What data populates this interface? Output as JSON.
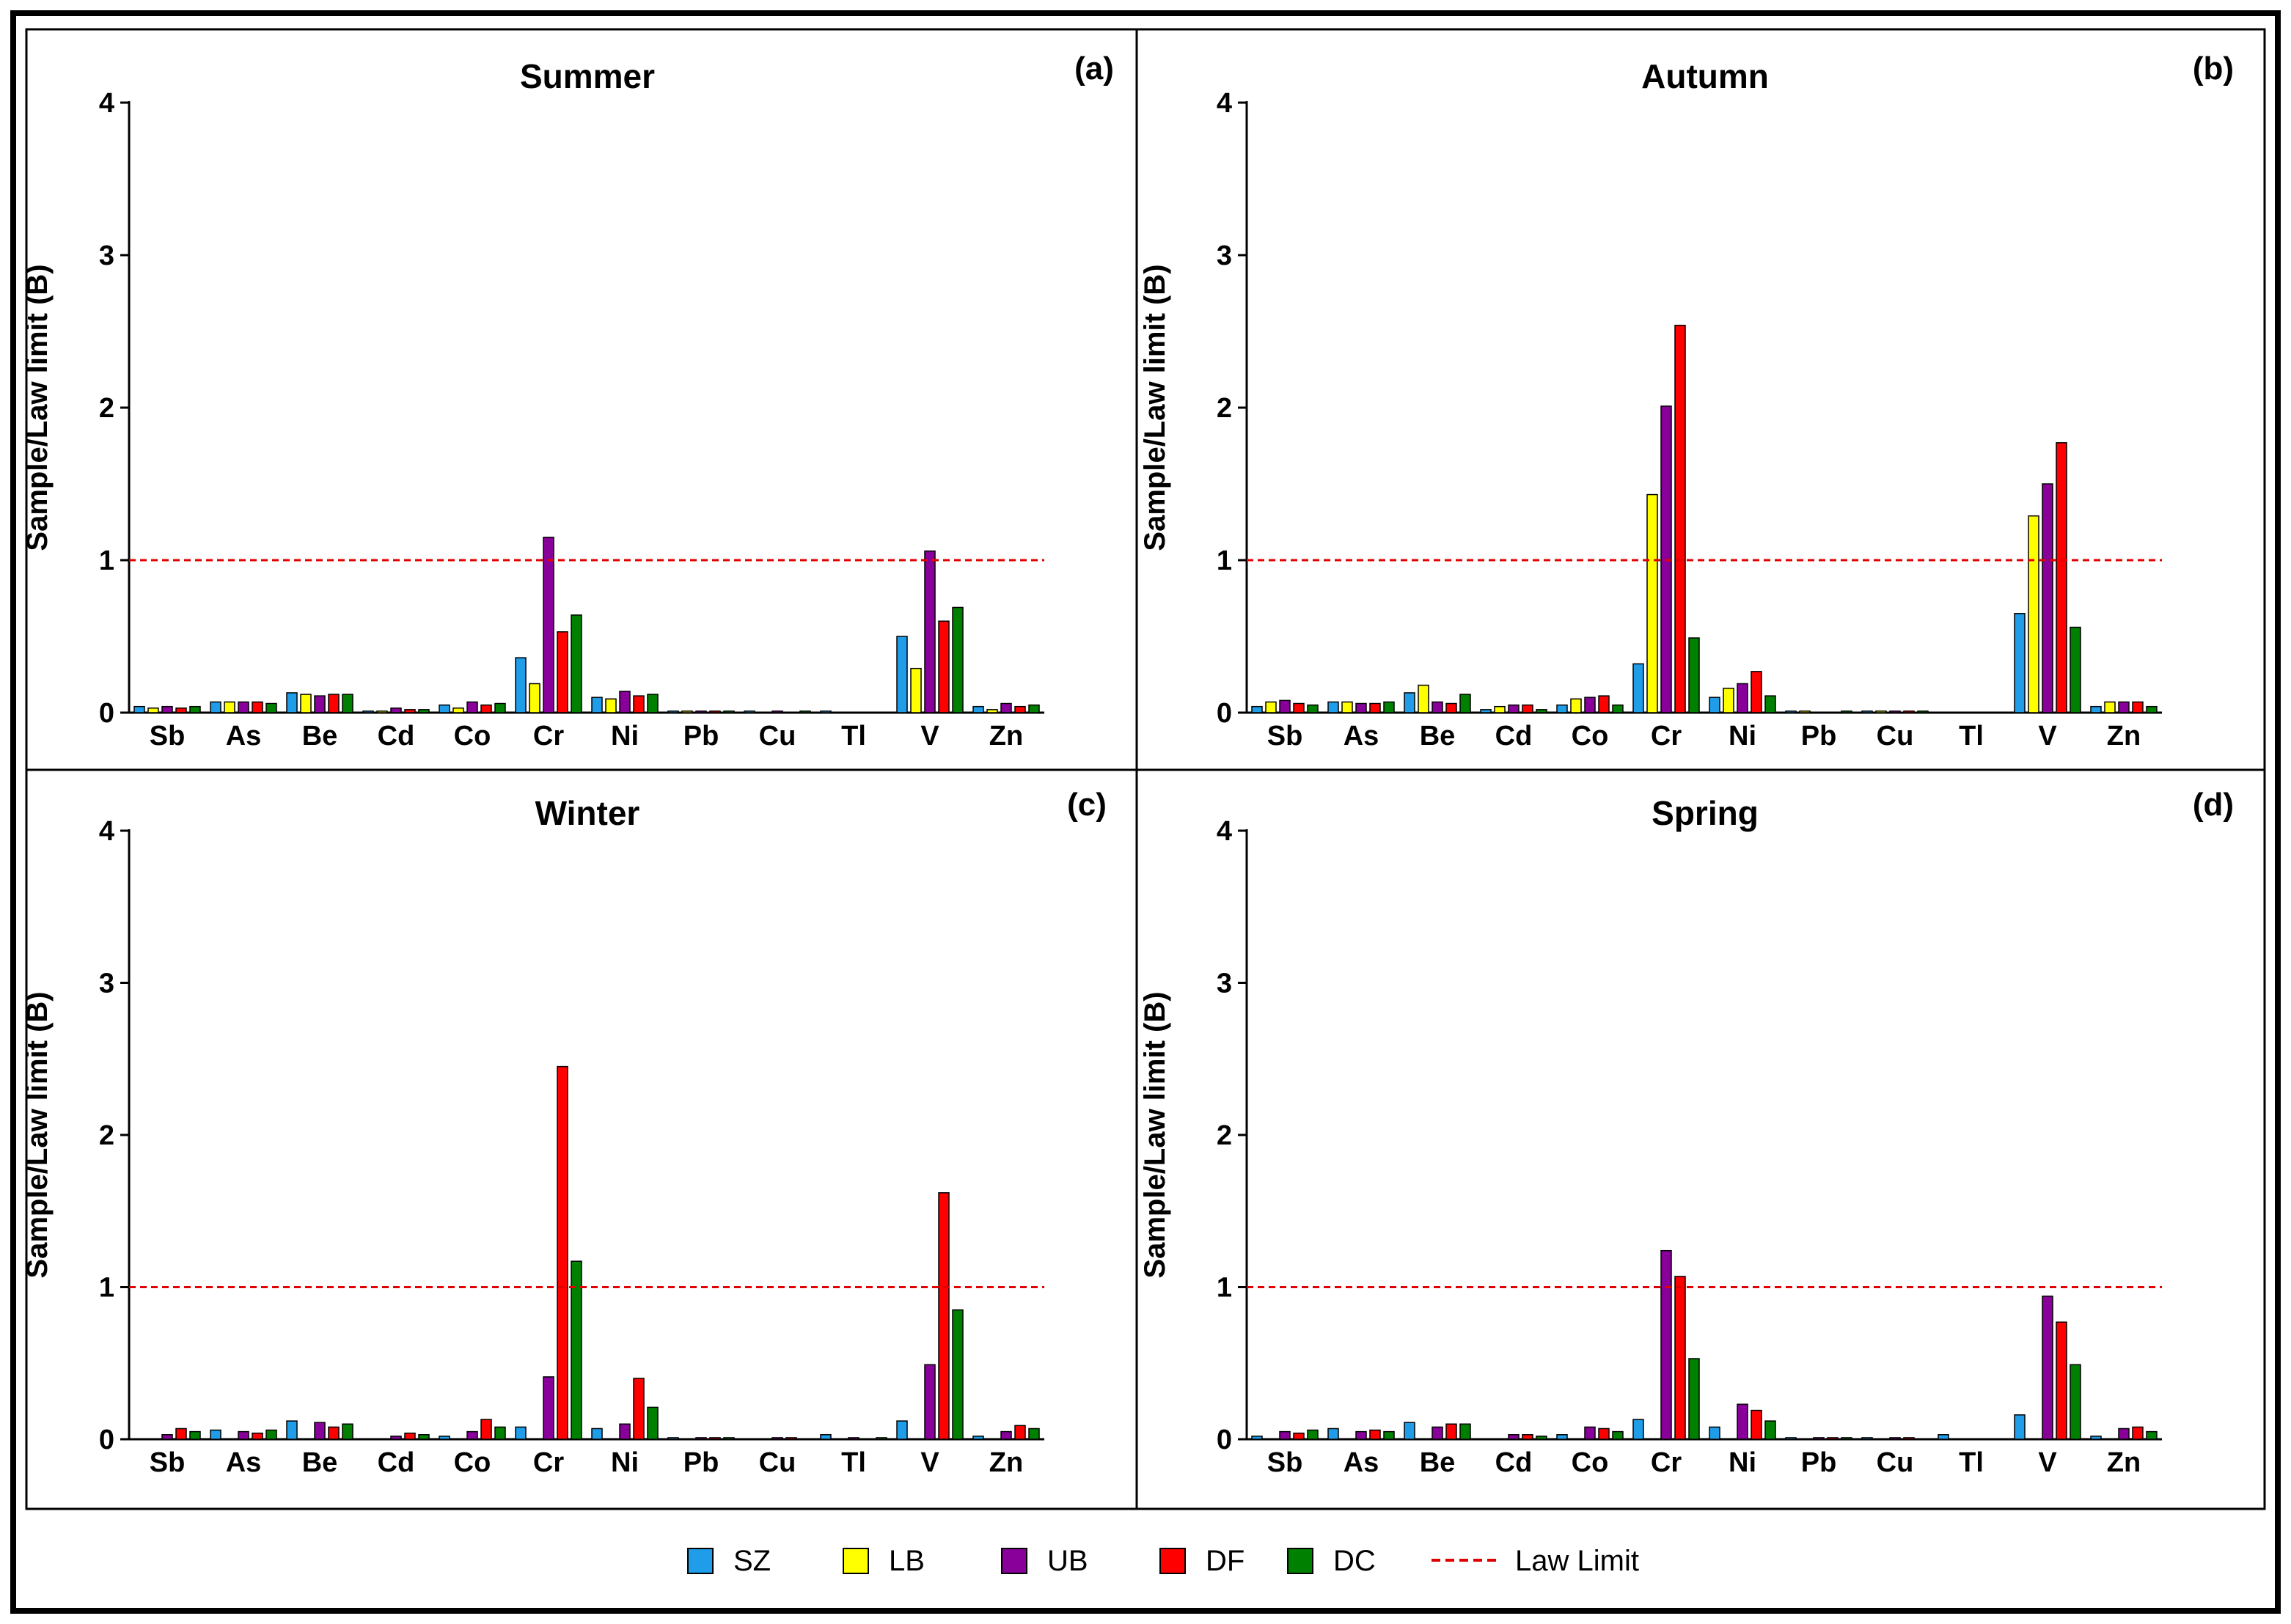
{
  "legend": {
    "items": [
      {
        "name": "SZ",
        "color": "#1f9de8"
      },
      {
        "name": "LB",
        "color": "#ffff00"
      },
      {
        "name": "UB",
        "color": "#880099"
      },
      {
        "name": "DF",
        "color": "#ff0000"
      },
      {
        "name": "DC",
        "color": "#008000"
      }
    ],
    "law_limit_label": "Law Limit",
    "law_limit_color": "#e00000"
  },
  "chart_data": [
    {
      "type": "bar",
      "panel_label": "(a)",
      "title": "Summer",
      "xlabel": "",
      "ylabel": "Sample/Law limit (B)",
      "ylim": [
        0,
        4
      ],
      "yticks": [
        "0",
        "1",
        "2",
        "3",
        "4"
      ],
      "law_limit": 1,
      "categories": [
        "Sb",
        "As",
        "Be",
        "Cd",
        "Co",
        "Cr",
        "Ni",
        "Pb",
        "Cu",
        "Tl",
        "V",
        "Zn"
      ],
      "series": [
        {
          "name": "SZ",
          "values": [
            0.04,
            0.07,
            0.13,
            0.01,
            0.05,
            0.36,
            0.1,
            0.01,
            0.01,
            0.01,
            0.5,
            0.04
          ]
        },
        {
          "name": "LB",
          "values": [
            0.03,
            0.07,
            0.12,
            0.01,
            0.03,
            0.19,
            0.09,
            0.01,
            0.0,
            0.0,
            0.29,
            0.02
          ]
        },
        {
          "name": "UB",
          "values": [
            0.04,
            0.07,
            0.11,
            0.03,
            0.07,
            1.15,
            0.14,
            0.01,
            0.01,
            0.0,
            1.06,
            0.06
          ]
        },
        {
          "name": "DF",
          "values": [
            0.03,
            0.07,
            0.12,
            0.02,
            0.05,
            0.53,
            0.11,
            0.01,
            0.0,
            0.0,
            0.6,
            0.04
          ]
        },
        {
          "name": "DC",
          "values": [
            0.04,
            0.06,
            0.12,
            0.02,
            0.06,
            0.64,
            0.12,
            0.01,
            0.01,
            0.0,
            0.69,
            0.05
          ]
        }
      ]
    },
    {
      "type": "bar",
      "panel_label": "(b)",
      "title": "Autumn",
      "xlabel": "",
      "ylabel": "Sample/Law limit (B)",
      "ylim": [
        0,
        4
      ],
      "yticks": [
        "0",
        "1",
        "2",
        "3",
        "4"
      ],
      "law_limit": 1,
      "categories": [
        "Sb",
        "As",
        "Be",
        "Cd",
        "Co",
        "Cr",
        "Ni",
        "Pb",
        "Cu",
        "Tl",
        "V",
        "Zn"
      ],
      "series": [
        {
          "name": "SZ",
          "values": [
            0.04,
            0.07,
            0.13,
            0.02,
            0.05,
            0.32,
            0.1,
            0.01,
            0.01,
            0.0,
            0.65,
            0.04
          ]
        },
        {
          "name": "LB",
          "values": [
            0.07,
            0.07,
            0.18,
            0.04,
            0.09,
            1.43,
            0.16,
            0.01,
            0.01,
            0.0,
            1.29,
            0.07
          ]
        },
        {
          "name": "UB",
          "values": [
            0.08,
            0.06,
            0.07,
            0.05,
            0.1,
            2.01,
            0.19,
            0.0,
            0.01,
            0.0,
            1.5,
            0.07
          ]
        },
        {
          "name": "DF",
          "values": [
            0.06,
            0.06,
            0.06,
            0.05,
            0.11,
            2.54,
            0.27,
            0.0,
            0.01,
            0.0,
            1.77,
            0.07
          ]
        },
        {
          "name": "DC",
          "values": [
            0.05,
            0.07,
            0.12,
            0.02,
            0.05,
            0.49,
            0.11,
            0.01,
            0.01,
            0.0,
            0.56,
            0.04
          ]
        }
      ]
    },
    {
      "type": "bar",
      "panel_label": "(c)",
      "title": "Winter",
      "xlabel": "",
      "ylabel": "Sample/Law limit (B)",
      "ylim": [
        0,
        4
      ],
      "yticks": [
        "0",
        "1",
        "2",
        "3",
        "4"
      ],
      "law_limit": 1,
      "categories": [
        "Sb",
        "As",
        "Be",
        "Cd",
        "Co",
        "Cr",
        "Ni",
        "Pb",
        "Cu",
        "Tl",
        "V",
        "Zn"
      ],
      "series": [
        {
          "name": "SZ",
          "values": [
            0.0,
            0.06,
            0.12,
            0.0,
            0.02,
            0.08,
            0.07,
            0.01,
            0.0,
            0.03,
            0.12,
            0.02
          ]
        },
        {
          "name": "LB",
          "values": [
            0.0,
            0.0,
            0.0,
            0.0,
            0.0,
            0.0,
            0.0,
            0.0,
            0.0,
            0.0,
            0.0,
            0.0
          ]
        },
        {
          "name": "UB",
          "values": [
            0.03,
            0.05,
            0.11,
            0.02,
            0.05,
            0.41,
            0.1,
            0.01,
            0.01,
            0.01,
            0.49,
            0.05
          ]
        },
        {
          "name": "DF",
          "values": [
            0.07,
            0.04,
            0.08,
            0.04,
            0.13,
            2.45,
            0.4,
            0.01,
            0.01,
            0.0,
            1.62,
            0.09
          ]
        },
        {
          "name": "DC",
          "values": [
            0.05,
            0.06,
            0.1,
            0.03,
            0.08,
            1.17,
            0.21,
            0.01,
            0.0,
            0.01,
            0.85,
            0.07
          ]
        }
      ]
    },
    {
      "type": "bar",
      "panel_label": "(d)",
      "title": "Spring",
      "xlabel": "",
      "ylabel": "Sample/Law limit (B)",
      "ylim": [
        0,
        4
      ],
      "yticks": [
        "0",
        "1",
        "2",
        "3",
        "4"
      ],
      "law_limit": 1,
      "categories": [
        "Sb",
        "As",
        "Be",
        "Cd",
        "Co",
        "Cr",
        "Ni",
        "Pb",
        "Cu",
        "Tl",
        "V",
        "Zn"
      ],
      "series": [
        {
          "name": "SZ",
          "values": [
            0.02,
            0.07,
            0.11,
            0.0,
            0.03,
            0.13,
            0.08,
            0.01,
            0.01,
            0.03,
            0.16,
            0.02
          ]
        },
        {
          "name": "LB",
          "values": [
            0.0,
            0.0,
            0.0,
            0.0,
            0.0,
            0.0,
            0.0,
            0.0,
            0.0,
            0.0,
            0.0,
            0.0
          ]
        },
        {
          "name": "UB",
          "values": [
            0.05,
            0.05,
            0.08,
            0.03,
            0.08,
            1.24,
            0.23,
            0.01,
            0.01,
            0.0,
            0.94,
            0.07
          ]
        },
        {
          "name": "DF",
          "values": [
            0.04,
            0.06,
            0.1,
            0.03,
            0.07,
            1.07,
            0.19,
            0.01,
            0.01,
            0.0,
            0.77,
            0.08
          ]
        },
        {
          "name": "DC",
          "values": [
            0.06,
            0.05,
            0.1,
            0.02,
            0.05,
            0.53,
            0.12,
            0.01,
            0.0,
            0.0,
            0.49,
            0.05
          ]
        }
      ]
    }
  ]
}
